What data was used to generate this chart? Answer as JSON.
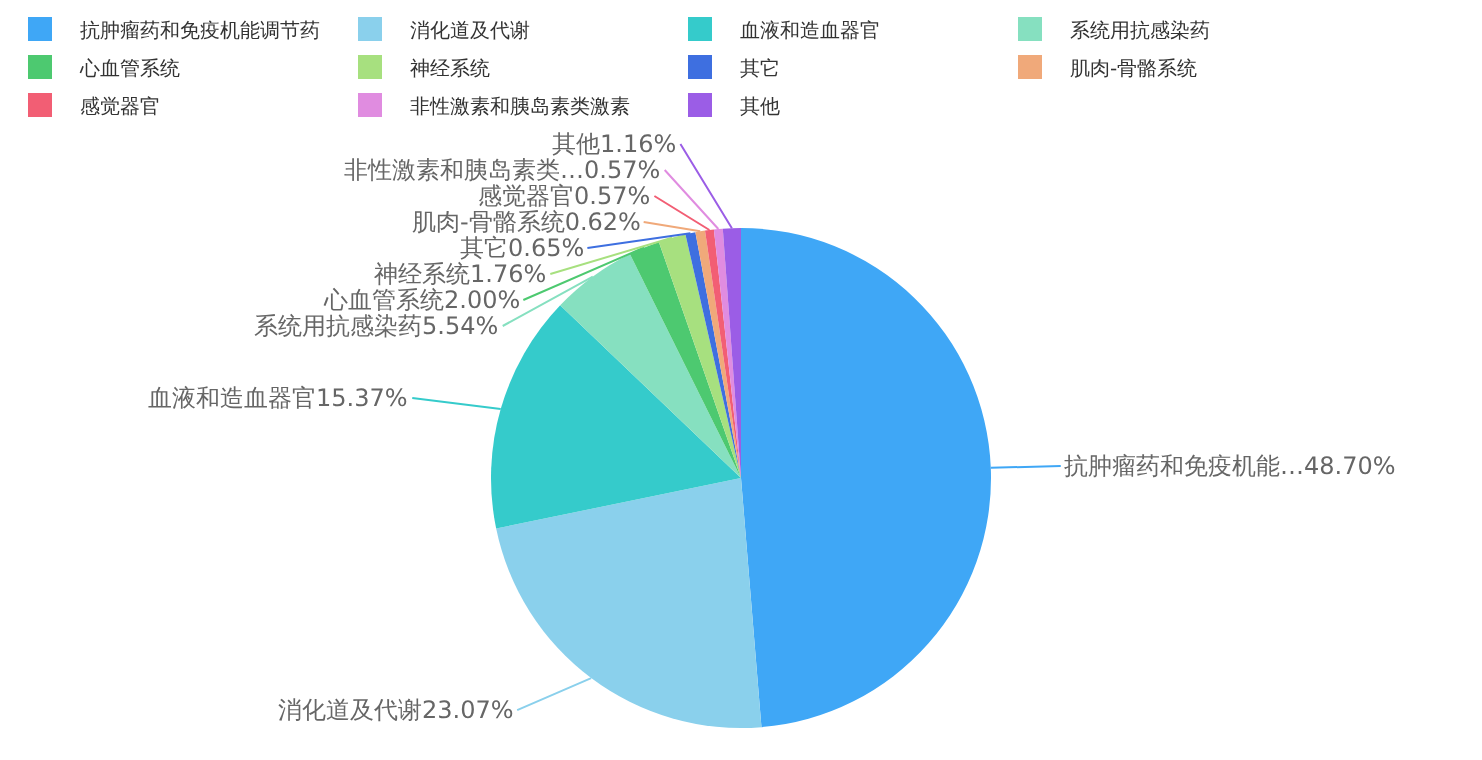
{
  "chart_data": {
    "type": "pie",
    "categories": [
      "抗肿瘤药和免疫机能调节药",
      "消化道及代谢",
      "血液和造血器官",
      "系统用抗感染药",
      "心血管系统",
      "神经系统",
      "其它",
      "肌肉-骨骼系统",
      "感觉器官",
      "非性激素和胰岛素类激素",
      "其他"
    ],
    "values": [
      48.7,
      23.07,
      15.37,
      5.54,
      2.0,
      1.76,
      0.65,
      0.62,
      0.57,
      0.57,
      1.16
    ],
    "value_labels": [
      "抗肿瘤药和免疫机能…48.70%",
      "消化道及代谢23.07%",
      "血液和造血器官15.37%",
      "系统用抗感染药5.54%",
      "心血管系统2.00%",
      "神经系统1.76%",
      "其它0.65%",
      "肌肉-骨骼系统0.62%",
      "感觉器官0.57%",
      "非性激素和胰岛素类…0.57%",
      "其他1.16%"
    ],
    "colors": [
      "#3fa7f6",
      "#8ad0ec",
      "#35cbcb",
      "#86e0c0",
      "#4dc970",
      "#a7e07f",
      "#3e6fe0",
      "#f0a97a",
      "#f25e74",
      "#e08ce0",
      "#9b5de6"
    ],
    "legend": "top"
  }
}
